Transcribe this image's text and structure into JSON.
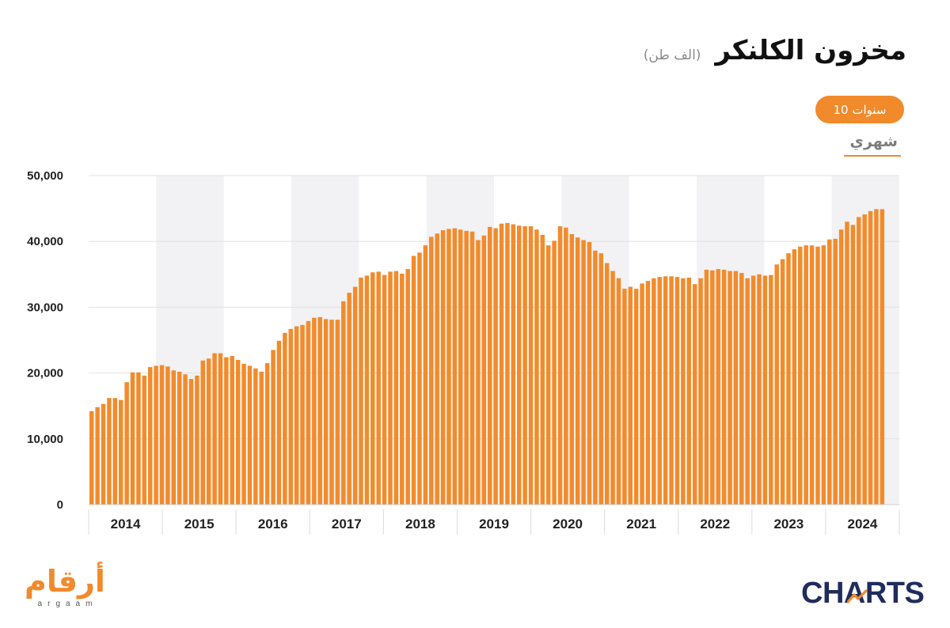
{
  "controls": {
    "range_button": "10 سنوات",
    "frequency_tab": "شهري"
  },
  "colors": {
    "bar": "#F28B2B",
    "accent": "#F08A2B",
    "band": "#F2F2F4",
    "brand_navy": "#1F2C5C"
  },
  "chart_data": {
    "type": "bar",
    "title": "مخزون الكلنكر",
    "unit": "(الف طن)",
    "x_tick_labels": [
      "2014",
      "2015",
      "2016",
      "2017",
      "2018",
      "2019",
      "2020",
      "2021",
      "2022",
      "2023",
      "2024"
    ],
    "y_ticks": [
      0,
      10000,
      20000,
      30000,
      40000,
      50000
    ],
    "y_tick_labels": [
      "0",
      "10,000",
      "20,000",
      "30,000",
      "40,000",
      "50,000"
    ],
    "ylim": [
      0,
      50000
    ],
    "grid": true,
    "values": [
      14200,
      14800,
      15300,
      16200,
      16200,
      15900,
      18600,
      20100,
      20100,
      19600,
      20900,
      21100,
      21200,
      21000,
      20400,
      20200,
      19800,
      19100,
      19600,
      21900,
      22200,
      23000,
      23000,
      22400,
      22600,
      22000,
      21400,
      21100,
      20700,
      20200,
      21500,
      23500,
      24900,
      26100,
      26700,
      27100,
      27300,
      27900,
      28400,
      28500,
      28200,
      28100,
      28100,
      30900,
      32200,
      33100,
      34500,
      34800,
      35300,
      35400,
      34900,
      35400,
      35500,
      35100,
      35800,
      37800,
      38300,
      39400,
      40700,
      41200,
      41700,
      41900,
      42000,
      41800,
      41600,
      41500,
      40200,
      40900,
      42200,
      42000,
      42700,
      42800,
      42600,
      42400,
      42300,
      42300,
      41800,
      41000,
      39400,
      40100,
      42300,
      42100,
      41100,
      40600,
      40200,
      39900,
      38600,
      38200,
      36700,
      35500,
      34400,
      32800,
      33100,
      32800,
      33600,
      34000,
      34400,
      34600,
      34700,
      34700,
      34600,
      34400,
      34500,
      33500,
      34400,
      35700,
      35600,
      35800,
      35700,
      35500,
      35500,
      35200,
      34400,
      34800,
      35000,
      34800,
      34900,
      36500,
      37300,
      38200,
      38800,
      39200,
      39400,
      39400,
      39200,
      39400,
      40300,
      40400,
      41800,
      43000,
      42500,
      43700,
      44100,
      44600,
      44900,
      44900
    ]
  },
  "footer": {
    "argaam_logo": "أرقام",
    "argaam_logo_latin": "argaam",
    "charts_logo": "CHARTS"
  }
}
